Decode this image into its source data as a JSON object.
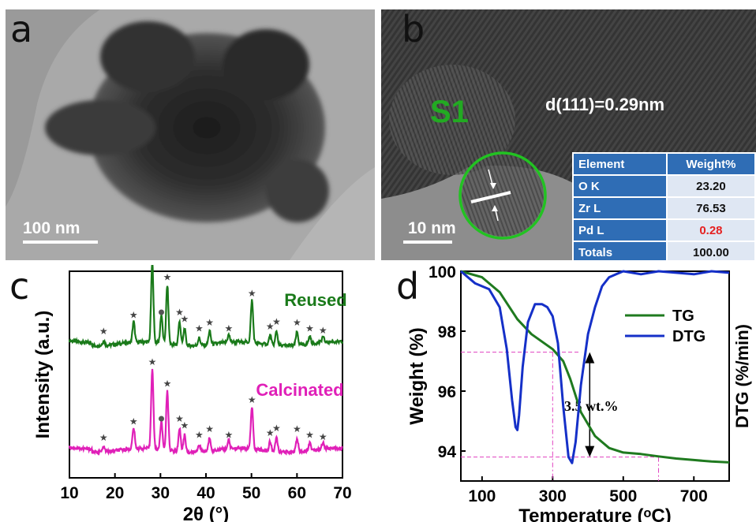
{
  "panel_a": {
    "label": "a",
    "scale_bar": "100 nm"
  },
  "panel_b": {
    "label": "b",
    "scale_bar": "10 nm",
    "region_label": "S1",
    "d_spacing": "d(111)=0.29nm",
    "table": {
      "headers": [
        "Element",
        "Weight%"
      ],
      "rows": [
        {
          "element": "O K",
          "weight": "23.20"
        },
        {
          "element": "Zr L",
          "weight": "76.53"
        },
        {
          "element": "Pd L",
          "weight": "0.28"
        },
        {
          "element": "Totals",
          "weight": "100.00"
        }
      ],
      "highlight_color": "#e52121"
    }
  },
  "panel_c": {
    "label": "c"
  },
  "panel_d": {
    "label": "d"
  },
  "colors": {
    "green": "#1a7a1a",
    "magenta": "#e020b8",
    "blue": "#1530c8",
    "tg_green": "#1f7a1f",
    "guide": "#e040c0"
  },
  "chart_data": [
    {
      "type": "line",
      "title": "",
      "xlabel": "2θ (°)",
      "ylabel": "Intensity (a.u.)",
      "xlim": [
        10,
        70
      ],
      "xticks": [
        "10",
        "20",
        "30",
        "40",
        "50",
        "60",
        "70"
      ],
      "series": [
        {
          "name": "Reused",
          "color": "#1a7a1a",
          "offset": 1.0
        },
        {
          "name": "Calcinated",
          "color": "#e020b8",
          "offset": 0.0
        }
      ],
      "peaks": [
        {
          "x": 17.5,
          "h": 0.05,
          "mark": "star"
        },
        {
          "x": 24.1,
          "h": 0.22,
          "mark": "star"
        },
        {
          "x": 28.2,
          "h": 0.85,
          "mark": "star"
        },
        {
          "x": 30.2,
          "h": 0.3,
          "mark": "ball"
        },
        {
          "x": 31.5,
          "h": 0.62,
          "mark": "star"
        },
        {
          "x": 34.2,
          "h": 0.25,
          "mark": "star"
        },
        {
          "x": 35.3,
          "h": 0.18,
          "mark": "star"
        },
        {
          "x": 38.5,
          "h": 0.08,
          "mark": "star"
        },
        {
          "x": 40.8,
          "h": 0.14,
          "mark": "star"
        },
        {
          "x": 45.0,
          "h": 0.08,
          "mark": "star"
        },
        {
          "x": 50.1,
          "h": 0.45,
          "mark": "star"
        },
        {
          "x": 54.1,
          "h": 0.1,
          "mark": "star"
        },
        {
          "x": 55.5,
          "h": 0.15,
          "mark": "star"
        },
        {
          "x": 60.0,
          "h": 0.14,
          "mark": "star"
        },
        {
          "x": 62.8,
          "h": 0.08,
          "mark": "star"
        },
        {
          "x": 65.7,
          "h": 0.06,
          "mark": "star"
        }
      ]
    },
    {
      "type": "line",
      "title": "",
      "xlabel": "Temperature (ᵒC)",
      "ylabel": "Weight (%)",
      "ylabel_right": "DTG (%/min)",
      "xlim": [
        40,
        800
      ],
      "ylim": [
        93,
        100
      ],
      "xticks": [
        100,
        300,
        500,
        700
      ],
      "yticks": [
        94,
        96,
        98,
        100
      ],
      "annotation": "3.5 wt.%",
      "annotation_levels": [
        97.3,
        93.8
      ],
      "guide_x": [
        300,
        600
      ],
      "series": [
        {
          "name": "TG",
          "color": "#1f7a1f",
          "x": [
            40,
            100,
            150,
            200,
            240,
            270,
            300,
            330,
            350,
            380,
            420,
            460,
            500,
            550,
            600,
            650,
            700,
            750,
            800
          ],
          "y": [
            100,
            99.8,
            99.3,
            98.4,
            97.9,
            97.65,
            97.4,
            97.0,
            96.4,
            95.3,
            94.5,
            94.1,
            93.95,
            93.9,
            93.82,
            93.75,
            93.7,
            93.65,
            93.62
          ]
        },
        {
          "name": "DTG",
          "color": "#1530c8",
          "x": [
            40,
            80,
            120,
            150,
            170,
            185,
            195,
            200,
            205,
            215,
            230,
            250,
            270,
            285,
            300,
            315,
            330,
            345,
            355,
            365,
            380,
            400,
            420,
            440,
            460,
            480,
            500,
            550,
            600,
            650,
            700,
            750,
            800
          ],
          "y": [
            100,
            99.6,
            99.4,
            98.8,
            97.4,
            95.7,
            94.8,
            94.7,
            95.2,
            96.8,
            98.3,
            98.9,
            98.9,
            98.8,
            98.5,
            97.6,
            95.5,
            93.8,
            93.6,
            94.3,
            96.2,
            97.9,
            98.8,
            99.5,
            99.8,
            99.9,
            100.0,
            99.9,
            100.0,
            99.95,
            99.9,
            100.0,
            99.95
          ]
        }
      ]
    }
  ]
}
